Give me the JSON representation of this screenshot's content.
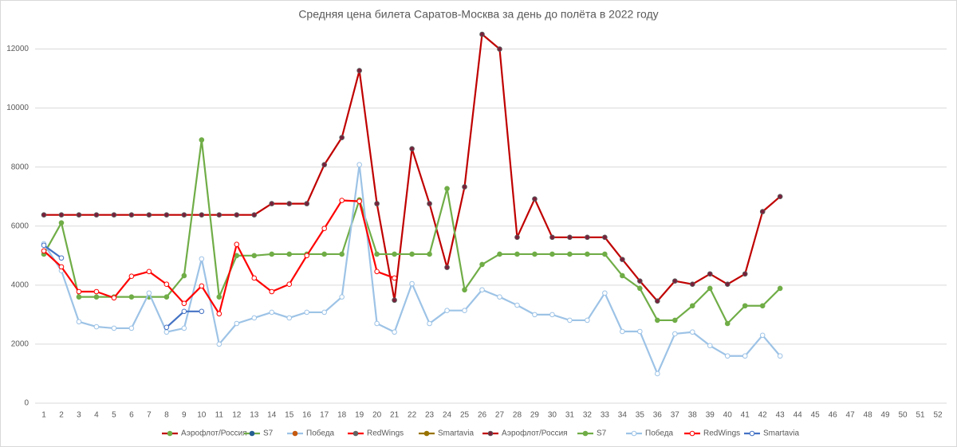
{
  "chart_data": {
    "type": "line",
    "title": "Средняя цена билета Саратов-Москва за день до полёта в 2022 году",
    "categories": [
      "1",
      "2",
      "3",
      "4",
      "5",
      "6",
      "7",
      "8",
      "9",
      "10",
      "11",
      "12",
      "13",
      "14",
      "15",
      "16",
      "17",
      "18",
      "19",
      "20",
      "21",
      "22",
      "23",
      "24",
      "25",
      "26",
      "27",
      "28",
      "29",
      "30",
      "31",
      "32",
      "33",
      "34",
      "35",
      "36",
      "37",
      "38",
      "39",
      "40",
      "41",
      "42",
      "43",
      "44",
      "45",
      "46",
      "47",
      "48",
      "49",
      "50",
      "51",
      "52"
    ],
    "ylim": [
      0,
      12500
    ],
    "yticks": [
      0,
      2000,
      4000,
      6000,
      8000,
      10000,
      12000
    ],
    "grid": true,
    "legend": "bottom",
    "series": [
      {
        "name": "Аэрофлот/Россия",
        "color": "#c00000",
        "marker_fill": "#70ad47",
        "marker_stroke": "#70ad47",
        "values": [
          null,
          null,
          null,
          null,
          null,
          null,
          null,
          null,
          null,
          null,
          null,
          null,
          null,
          null,
          null,
          null,
          null,
          null,
          null,
          null,
          null,
          null,
          null,
          null,
          null,
          null,
          null,
          null,
          null,
          null,
          null,
          null,
          null,
          null,
          null,
          null,
          null,
          null,
          null,
          null,
          null,
          null,
          null,
          null,
          null,
          null,
          null,
          null,
          null,
          null,
          null,
          null
        ]
      },
      {
        "name": "S7",
        "color": "#70ad47",
        "marker_fill": "#255e91",
        "marker_stroke": "#255e91",
        "values": [
          null,
          null,
          null,
          null,
          null,
          null,
          null,
          null,
          null,
          null,
          null,
          null,
          null,
          null,
          null,
          null,
          null,
          null,
          null,
          null,
          null,
          null,
          null,
          null,
          null,
          null,
          null,
          null,
          null,
          null,
          null,
          null,
          null,
          null,
          null,
          null,
          null,
          null,
          null,
          null,
          null,
          null,
          null,
          null,
          null,
          null,
          null,
          null,
          null,
          null,
          null,
          null
        ]
      },
      {
        "name": "Победа",
        "color": "#9dc3e6",
        "marker_fill": "#c55a11",
        "marker_stroke": "#c55a11",
        "values": [
          null,
          null,
          null,
          null,
          null,
          null,
          null,
          null,
          null,
          null,
          null,
          null,
          null,
          null,
          null,
          null,
          null,
          null,
          null,
          null,
          null,
          null,
          null,
          null,
          null,
          null,
          null,
          null,
          null,
          null,
          null,
          null,
          null,
          null,
          null,
          null,
          null,
          null,
          null,
          null,
          null,
          null,
          null,
          null,
          null,
          null,
          null,
          null,
          null,
          null,
          null,
          null
        ]
      },
      {
        "name": "RedWings",
        "color": "#ff0000",
        "marker_fill": "#636363",
        "marker_stroke": "#636363",
        "values": [
          null,
          null,
          null,
          null,
          null,
          null,
          null,
          null,
          null,
          null,
          null,
          null,
          null,
          null,
          null,
          null,
          null,
          null,
          null,
          null,
          null,
          null,
          null,
          null,
          null,
          null,
          null,
          null,
          null,
          null,
          null,
          null,
          null,
          null,
          null,
          null,
          null,
          null,
          null,
          null,
          null,
          null,
          null,
          null,
          null,
          null,
          null,
          null,
          null,
          null,
          null,
          null
        ]
      },
      {
        "name": "Smartavia",
        "color": "#997300",
        "marker_fill": "#997300",
        "marker_stroke": "#997300",
        "values": [
          null,
          null,
          null,
          null,
          null,
          null,
          null,
          null,
          null,
          null,
          null,
          null,
          null,
          null,
          null,
          null,
          null,
          null,
          null,
          null,
          null,
          null,
          null,
          null,
          null,
          null,
          null,
          null,
          null,
          null,
          null,
          null,
          null,
          null,
          null,
          null,
          null,
          null,
          null,
          null,
          null,
          null,
          null,
          null,
          null,
          null,
          null,
          null,
          null,
          null,
          null,
          null
        ]
      },
      {
        "name": "Аэрофлот/Россия",
        "color": "#c00000",
        "marker_fill": "#7b1f3a",
        "marker_stroke": "#595959",
        "values": [
          6380,
          6380,
          6380,
          6380,
          6380,
          6380,
          6380,
          6380,
          6380,
          6380,
          6380,
          6380,
          6380,
          6760,
          6760,
          6760,
          8080,
          9000,
          11270,
          6760,
          3490,
          8620,
          6760,
          4600,
          7330,
          12500,
          12000,
          5620,
          6920,
          5620,
          5620,
          5620,
          5620,
          4870,
          4140,
          3460,
          4140,
          4030,
          4380,
          4030,
          4380,
          6490,
          7000,
          null,
          null,
          null,
          null,
          null,
          null,
          null,
          null,
          null
        ]
      },
      {
        "name": "S7",
        "color": "#70ad47",
        "marker_fill": "#70ad47",
        "marker_stroke": "#70ad47",
        "values": [
          5050,
          6110,
          3600,
          3600,
          3600,
          3600,
          3600,
          3600,
          4320,
          8920,
          3600,
          5000,
          5000,
          5050,
          5050,
          5050,
          5050,
          5050,
          6890,
          5050,
          5050,
          5050,
          5050,
          7270,
          3840,
          4700,
          5050,
          5050,
          5050,
          5050,
          5050,
          5050,
          5050,
          4320,
          3890,
          2810,
          2810,
          3300,
          3890,
          2700,
          3300,
          3300,
          3890,
          null,
          null,
          null,
          null,
          null,
          null,
          null,
          null,
          null
        ]
      },
      {
        "name": "Победа",
        "color": "#9dc3e6",
        "marker_fill": "#ffffff",
        "marker_stroke": "#9dc3e6",
        "values": [
          5400,
          4490,
          2760,
          2590,
          2540,
          2540,
          3730,
          2410,
          2540,
          4890,
          2000,
          2700,
          2890,
          3080,
          2890,
          3080,
          3080,
          3600,
          8080,
          2700,
          2410,
          4050,
          2700,
          3140,
          3140,
          3840,
          3600,
          3320,
          3000,
          3000,
          2810,
          2810,
          3730,
          2430,
          2430,
          1000,
          2350,
          2410,
          1950,
          1600,
          1600,
          2300,
          1600,
          null,
          null,
          null,
          null,
          null,
          null,
          null,
          null,
          null
        ]
      },
      {
        "name": "RedWings",
        "color": "#ff0000",
        "marker_fill": "#ffffff",
        "marker_stroke": "#ff0000",
        "values": [
          5160,
          4620,
          3780,
          3780,
          3570,
          4300,
          4460,
          4030,
          3380,
          3970,
          3030,
          5380,
          4240,
          3780,
          4030,
          5000,
          5920,
          6870,
          6840,
          4460,
          4240,
          null,
          null,
          null,
          null,
          null,
          null,
          null,
          null,
          null,
          null,
          null,
          null,
          null,
          null,
          null,
          null,
          null,
          null,
          null,
          null,
          null,
          null,
          null,
          null,
          null,
          null,
          null,
          null,
          null,
          null,
          null
        ]
      },
      {
        "name": "Smartavia",
        "color": "#4472c4",
        "marker_fill": "#ffffff",
        "marker_stroke": "#4472c4",
        "values": [
          5350,
          4920,
          null,
          null,
          null,
          null,
          null,
          2570,
          3110,
          3110,
          null,
          null,
          null,
          null,
          null,
          null,
          null,
          null,
          null,
          null,
          null,
          null,
          null,
          null,
          null,
          null,
          null,
          null,
          null,
          null,
          null,
          null,
          null,
          null,
          null,
          null,
          null,
          null,
          null,
          null,
          null,
          null,
          null,
          null,
          null,
          null,
          null,
          null,
          null,
          null,
          null,
          null
        ]
      }
    ]
  }
}
